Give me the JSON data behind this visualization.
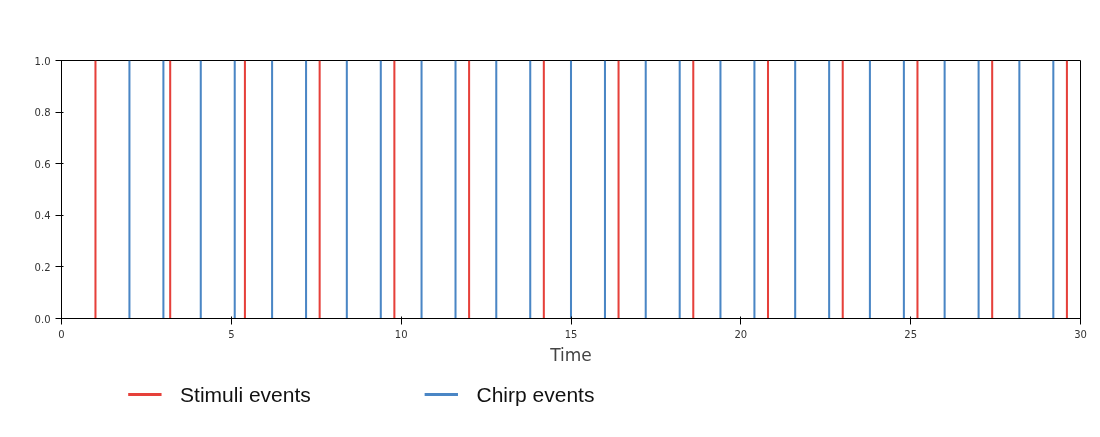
{
  "chart_data": {
    "type": "bar",
    "xlabel": "Time",
    "xlim": [
      0,
      30
    ],
    "xticks": [
      0,
      5,
      10,
      15,
      20,
      25,
      30
    ],
    "ylim": [
      0,
      1
    ],
    "yticks": [
      {
        "value": 0,
        "label": "0.0"
      },
      {
        "value": 0.2,
        "label": "0.2"
      },
      {
        "value": 0.4,
        "label": "0.4"
      },
      {
        "value": 0.6,
        "label": "0.6"
      },
      {
        "value": 0.8,
        "label": "0.8"
      },
      {
        "value": 1,
        "label": "1.0"
      }
    ],
    "legend": "bottom",
    "grid": false,
    "series": [
      {
        "name": "Stimuli events",
        "color": "#e6403a",
        "x": [
          1,
          3.2,
          5.4,
          7.6,
          9.8,
          12,
          14.2,
          16.4,
          18.6,
          20.8,
          23,
          25.2,
          27.4,
          29.6
        ],
        "values": [
          1,
          1,
          1,
          1,
          1,
          1,
          1,
          1,
          1,
          1,
          1,
          1,
          1,
          1
        ]
      },
      {
        "name": "Chirp events",
        "color": "#4a86c5",
        "x": [
          2,
          3,
          4.1,
          5.1,
          6.2,
          7.2,
          8.4,
          9.4,
          10.6,
          11.6,
          12.8,
          13.8,
          15,
          16,
          17.2,
          18.2,
          19.4,
          20.4,
          21.6,
          22.6,
          23.8,
          24.8,
          26,
          27,
          28.2,
          29.2
        ],
        "values": [
          1,
          1,
          1,
          1,
          1,
          1,
          1,
          1,
          1,
          1,
          1,
          1,
          1,
          1,
          1,
          1,
          1,
          1,
          1,
          1,
          1,
          1,
          1,
          1,
          1,
          1
        ]
      }
    ]
  }
}
